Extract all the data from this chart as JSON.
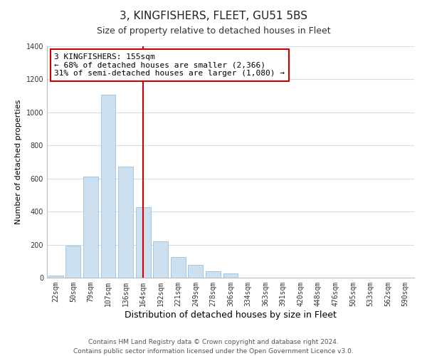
{
  "title": "3, KINGFISHERS, FLEET, GU51 5BS",
  "subtitle": "Size of property relative to detached houses in Fleet",
  "xlabel": "Distribution of detached houses by size in Fleet",
  "ylabel": "Number of detached properties",
  "bar_labels": [
    "22sqm",
    "50sqm",
    "79sqm",
    "107sqm",
    "136sqm",
    "164sqm",
    "192sqm",
    "221sqm",
    "249sqm",
    "278sqm",
    "306sqm",
    "334sqm",
    "363sqm",
    "391sqm",
    "420sqm",
    "448sqm",
    "476sqm",
    "505sqm",
    "533sqm",
    "562sqm",
    "590sqm"
  ],
  "bar_values": [
    15,
    195,
    610,
    1105,
    670,
    425,
    220,
    125,
    78,
    40,
    28,
    0,
    0,
    0,
    0,
    0,
    0,
    0,
    0,
    0,
    0
  ],
  "bar_color": "#cde0f0",
  "bar_edge_color": "#9bbfd8",
  "vline_x": 5.0,
  "vline_color": "#cc0000",
  "annotation_line1": "3 KINGFISHERS: 155sqm",
  "annotation_line2": "← 68% of detached houses are smaller (2,366)",
  "annotation_line3": "31% of semi-detached houses are larger (1,080) →",
  "annotation_box_color": "#ffffff",
  "annotation_box_edge": "#cc0000",
  "ylim": [
    0,
    1400
  ],
  "yticks": [
    0,
    200,
    400,
    600,
    800,
    1000,
    1200,
    1400
  ],
  "footer_line1": "Contains HM Land Registry data © Crown copyright and database right 2024.",
  "footer_line2": "Contains public sector information licensed under the Open Government Licence v3.0.",
  "title_fontsize": 11,
  "subtitle_fontsize": 9,
  "xlabel_fontsize": 9,
  "ylabel_fontsize": 8,
  "tick_fontsize": 7,
  "annotation_fontsize": 8,
  "footer_fontsize": 6.5,
  "background_color": "#ffffff",
  "grid_color": "#cce0ee"
}
